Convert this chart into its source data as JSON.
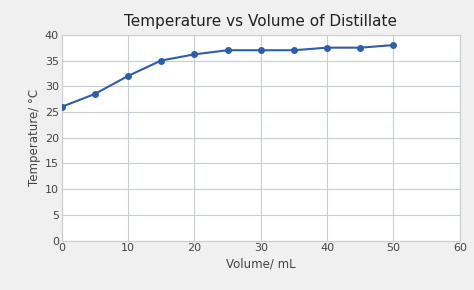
{
  "x": [
    0,
    5,
    10,
    15,
    20,
    25,
    30,
    35,
    40,
    45,
    50
  ],
  "y": [
    26,
    28.5,
    32,
    35,
    36.2,
    37,
    37,
    37,
    37.5,
    37.5,
    38
  ],
  "title": "Temperature vs Volume of Distillate",
  "xlabel": "Volume/ mL",
  "ylabel": "Temperature/ °C",
  "xlim": [
    0,
    60
  ],
  "ylim": [
    0,
    40
  ],
  "xticks": [
    0,
    10,
    20,
    30,
    40,
    50,
    60
  ],
  "yticks": [
    0,
    5,
    10,
    15,
    20,
    25,
    30,
    35,
    40
  ],
  "line_color": "#2E5EA8",
  "marker": "o",
  "marker_size": 4,
  "line_width": 1.5,
  "background_color": "#f0f0f0",
  "plot_bg_color": "#ffffff",
  "grid_color": "#c8cdd4",
  "title_fontsize": 11,
  "label_fontsize": 8.5,
  "tick_fontsize": 8
}
